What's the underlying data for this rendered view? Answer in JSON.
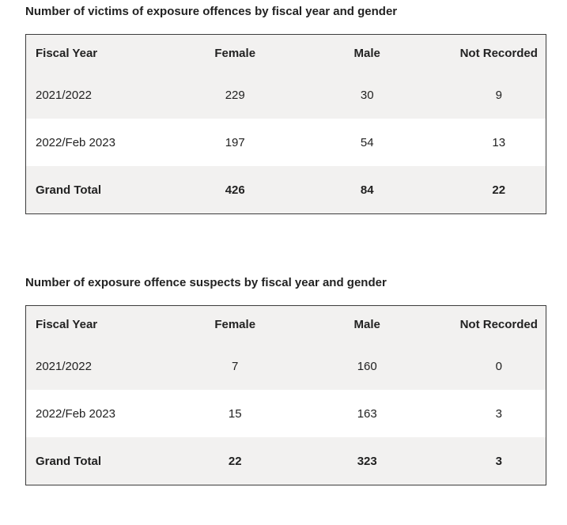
{
  "tables": [
    {
      "caption": "Number of victims of exposure offences by fiscal year and gender",
      "headers": [
        "Fiscal Year",
        "Female",
        "Male",
        "Not Recorded"
      ],
      "rows": [
        [
          "2021/2022",
          "229",
          "30",
          "9"
        ],
        [
          "2022/Feb 2023",
          "197",
          "54",
          "13"
        ]
      ],
      "total": [
        "Grand Total",
        "426",
        "84",
        "22"
      ]
    },
    {
      "caption": "Number of exposure offence suspects by fiscal year and gender",
      "headers": [
        "Fiscal Year",
        "Female",
        "Male",
        "Not Recorded"
      ],
      "rows": [
        [
          "2021/2022",
          "7",
          "160",
          "0"
        ],
        [
          "2022/Feb 2023",
          "15",
          "163",
          "3"
        ]
      ],
      "total": [
        "Grand Total",
        "22",
        "323",
        "3"
      ]
    }
  ]
}
